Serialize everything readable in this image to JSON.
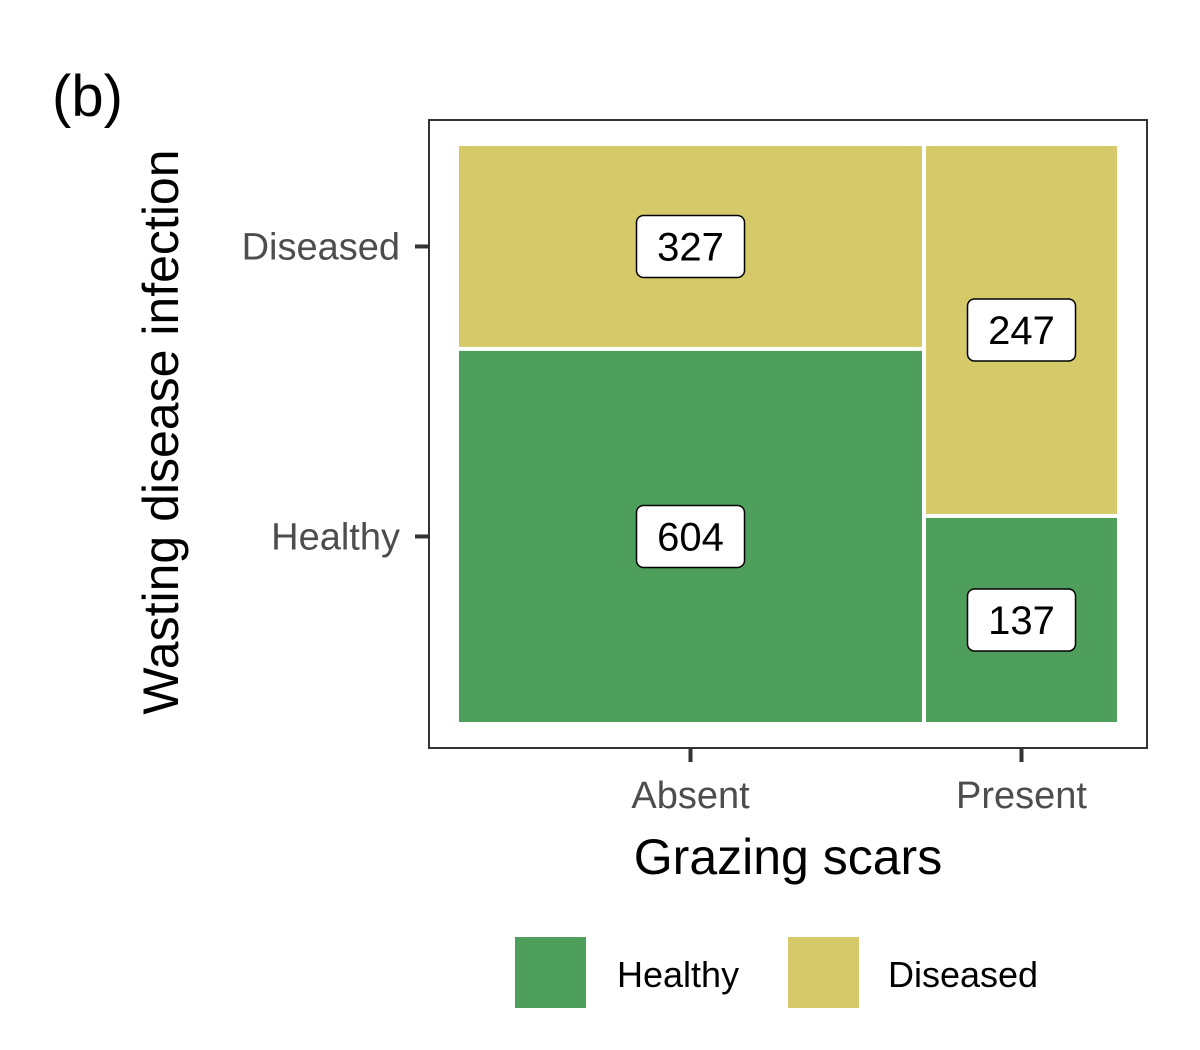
{
  "panel_tag": "(b)",
  "colors": {
    "healthy": "#4f9f5c",
    "diseased": "#d6c96a",
    "panel_border": "#333333",
    "tick": "#333333"
  },
  "chart_data": {
    "type": "mosaic",
    "xlabel": "Grazing scars",
    "ylabel": "Wasting disease infection",
    "x_categories": [
      "Absent",
      "Present"
    ],
    "y_categories": [
      "Healthy",
      "Diseased"
    ],
    "counts": {
      "Absent": {
        "Healthy": 604,
        "Diseased": 327
      },
      "Present": {
        "Healthy": 137,
        "Diseased": 247
      }
    },
    "legend": {
      "position": "bottom",
      "entries": [
        {
          "label": "Healthy",
          "color": "#4f9f5c"
        },
        {
          "label": "Diseased",
          "color": "#d6c96a"
        }
      ]
    },
    "grid": false
  }
}
